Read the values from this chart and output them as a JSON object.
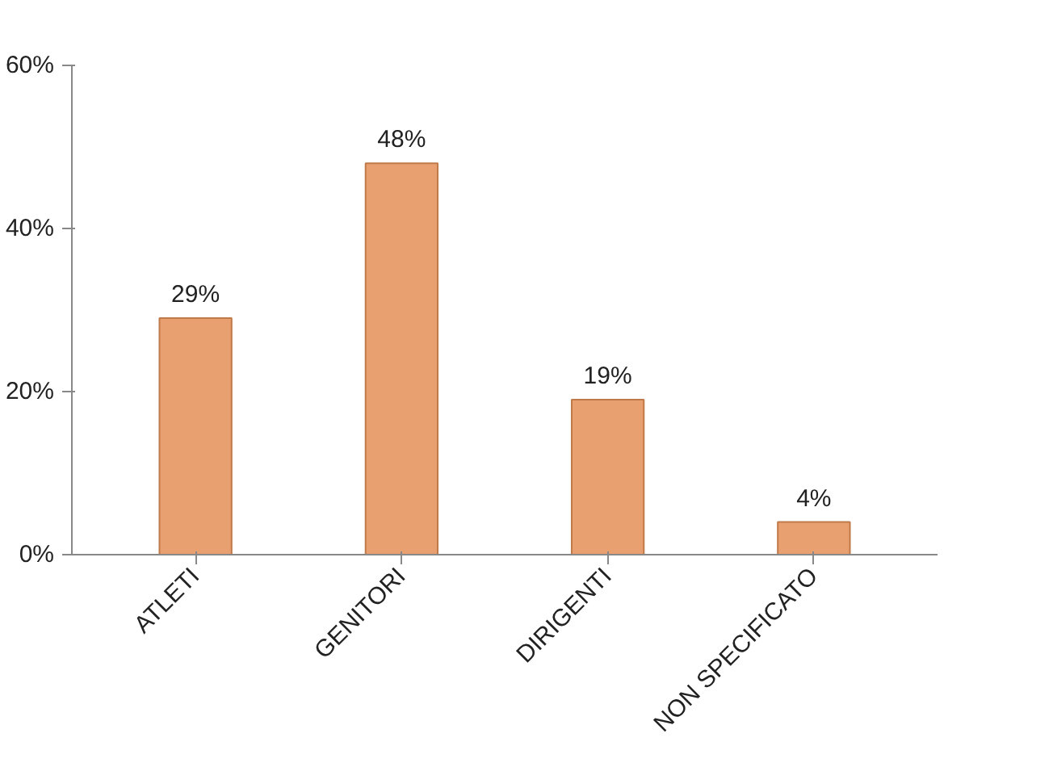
{
  "chart_data": {
    "type": "bar",
    "categories": [
      "ATLETI",
      "GENITORI",
      "DIRIGENTI",
      "NON SPECIFICATO"
    ],
    "values": [
      29,
      48,
      19,
      4
    ],
    "color": "#e8a070",
    "ylim": [
      0,
      60
    ],
    "yticks": [
      {
        "value": 0,
        "label": "0%"
      },
      {
        "value": 20,
        "label": "20%"
      },
      {
        "value": 40,
        "label": "40%"
      },
      {
        "value": 60,
        "label": "60%"
      }
    ],
    "value_labels": [
      "29%",
      "48%",
      "19%",
      "4%"
    ],
    "grid": false
  }
}
